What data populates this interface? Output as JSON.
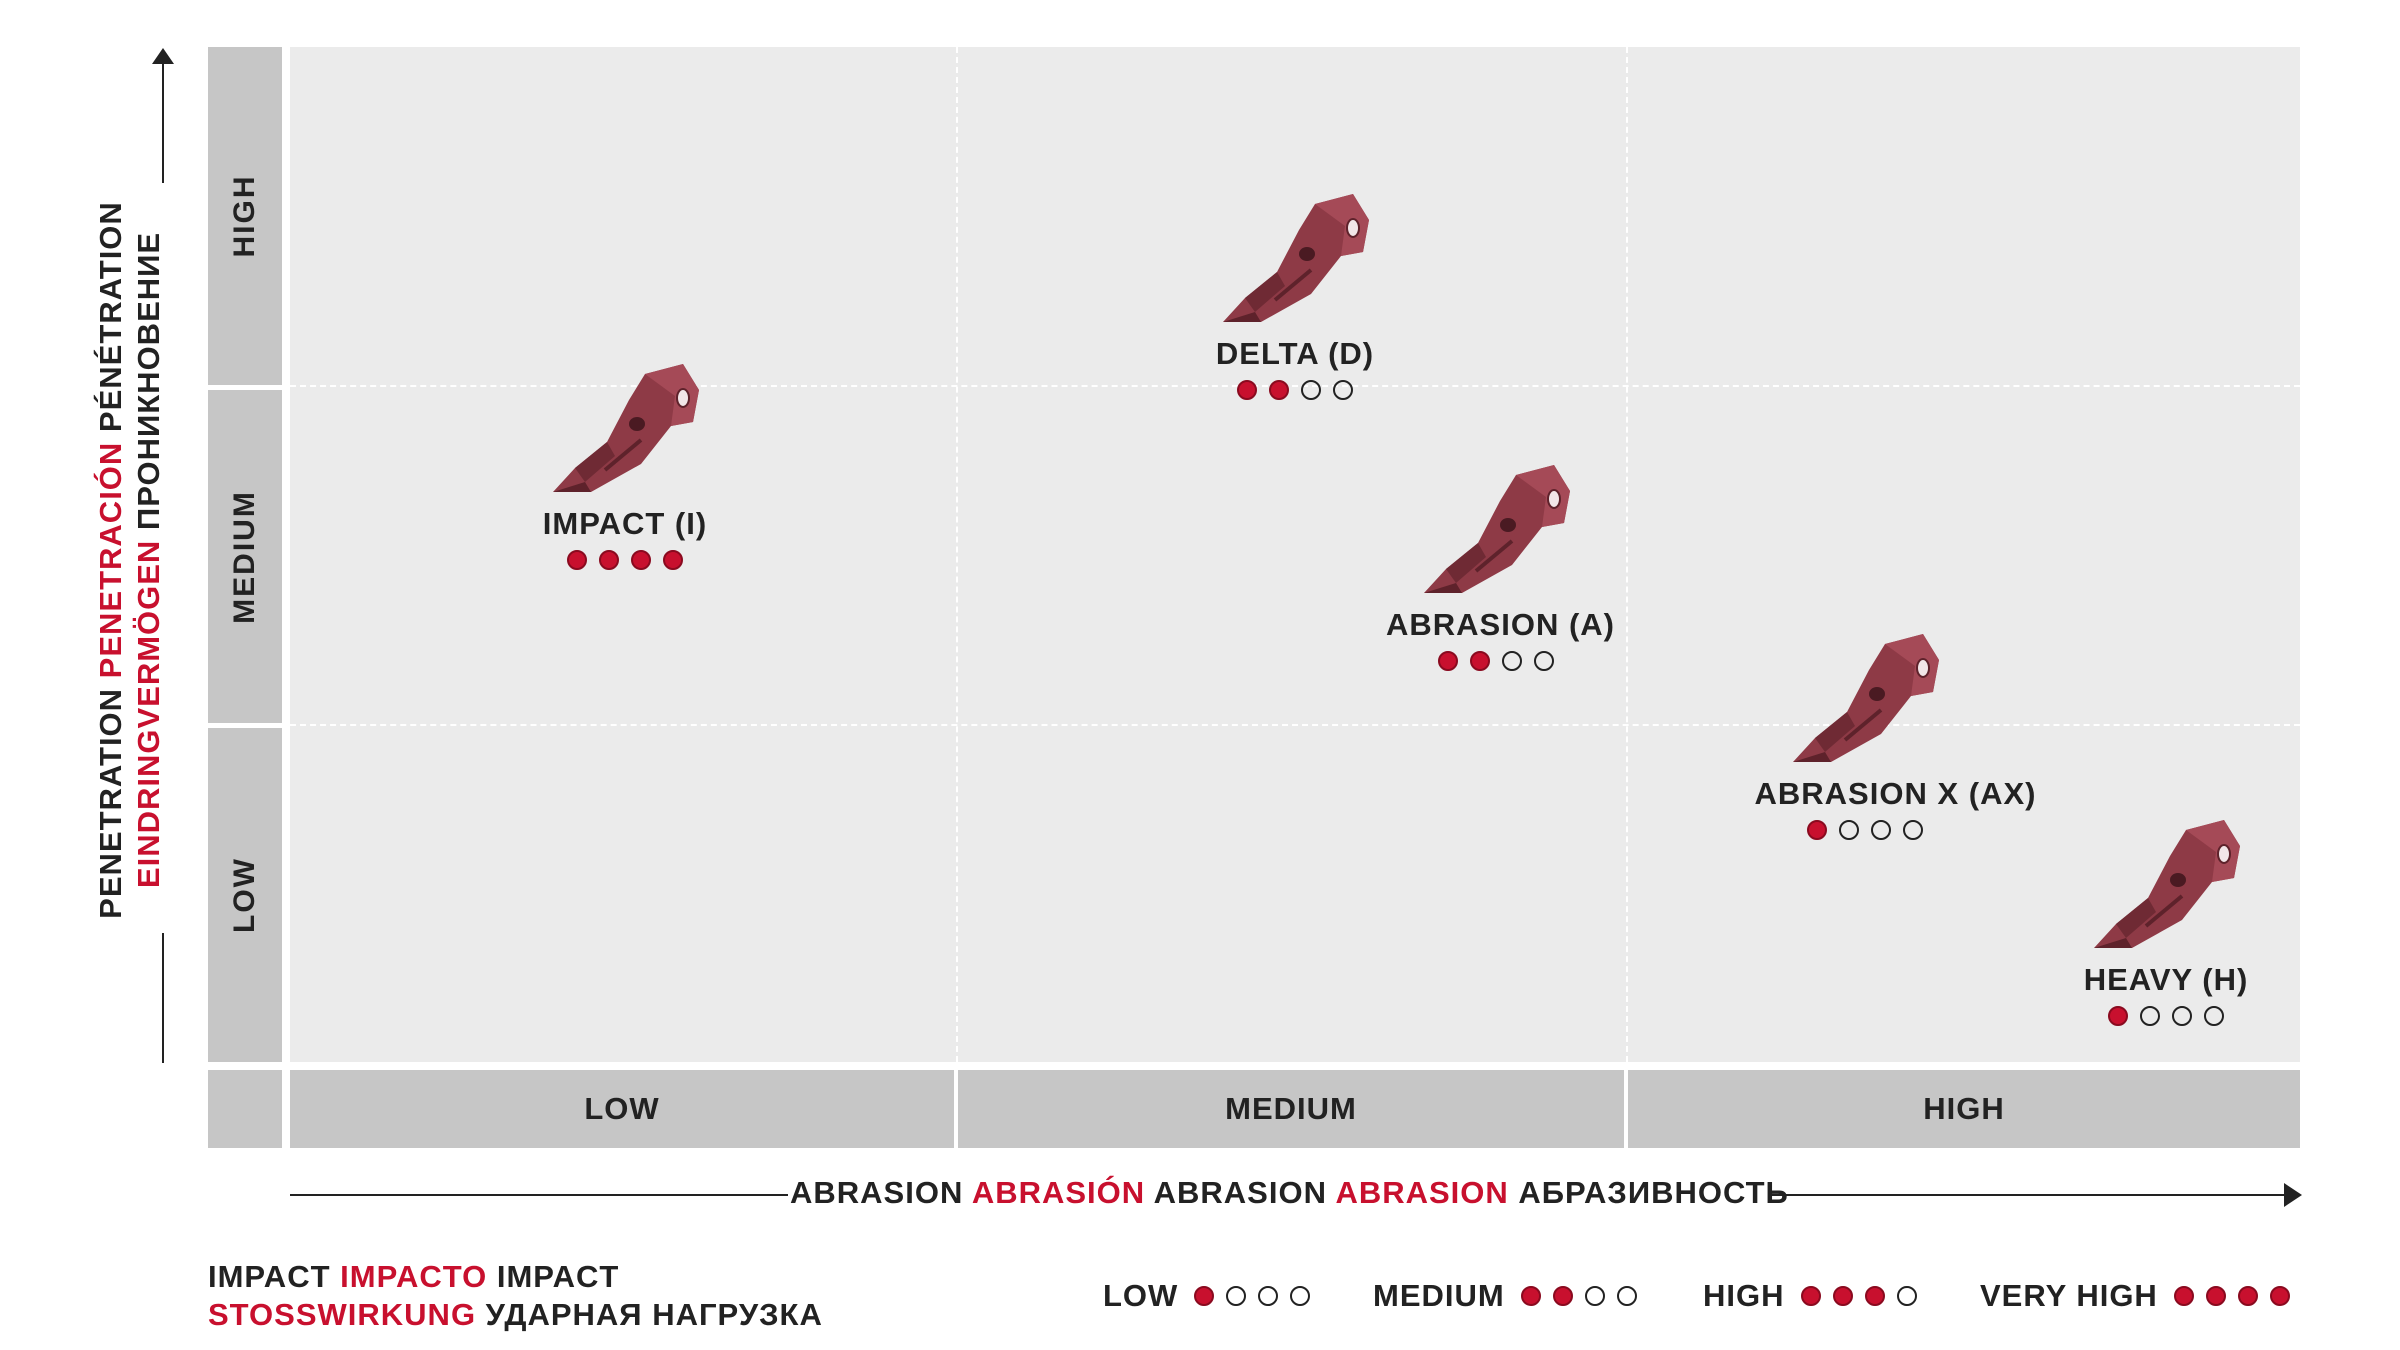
{
  "y_axis": {
    "title_parts": [
      {
        "text": "PENETRATION ",
        "accent": false
      },
      {
        "text": "PENETRACIÓN ",
        "accent": true
      },
      {
        "text": "PÉNÉTRATION",
        "accent": false
      }
    ],
    "title_parts_line2": [
      {
        "text": "EINDRINGVERMÖGEN ",
        "accent": true
      },
      {
        "text": "ПРОНИКНОВЕНИЕ",
        "accent": false
      }
    ],
    "levels": [
      "HIGH",
      "MEDIUM",
      "LOW"
    ]
  },
  "x_axis": {
    "levels": [
      "LOW",
      "MEDIUM",
      "HIGH"
    ],
    "title_parts": [
      {
        "text": "ABRASION ",
        "accent": false
      },
      {
        "text": "ABRASIÓN ",
        "accent": true
      },
      {
        "text": "ABRASION ",
        "accent": false
      },
      {
        "text": "ABRASION ",
        "accent": true
      },
      {
        "text": "АБРАЗИВНОСТЬ",
        "accent": false
      }
    ]
  },
  "teeth": [
    {
      "name": "IMPACT (I)",
      "abrasion": 0.5,
      "penetration": 1.5,
      "impact": 4
    },
    {
      "name": "DELTA (D)",
      "abrasion": 1.5,
      "penetration": 2.0,
      "impact": 2
    },
    {
      "name": "ABRASION (A)",
      "abrasion": 1.8,
      "penetration": 1.2,
      "impact": 2
    },
    {
      "name": "ABRASION X (AX)",
      "abrasion": 2.35,
      "penetration": 0.7,
      "impact": 1
    },
    {
      "name": "HEAVY (H)",
      "abrasion": 2.8,
      "penetration": 0.15,
      "impact": 1
    }
  ],
  "impact_legend": {
    "line1": [
      {
        "text": "IMPACT ",
        "accent": false
      },
      {
        "text": "IMPACTO ",
        "accent": true
      },
      {
        "text": "IMPACT",
        "accent": false
      }
    ],
    "line2": [
      {
        "text": "STOSSWIRKUNG ",
        "accent": true
      },
      {
        "text": "УДАРНАЯ НАГРУЗКА",
        "accent": false
      }
    ],
    "items": [
      {
        "label": "LOW",
        "filled": 1
      },
      {
        "label": "MEDIUM",
        "filled": 2
      },
      {
        "label": "HIGH",
        "filled": 3
      },
      {
        "label": "VERY HIGH",
        "filled": 4
      }
    ]
  },
  "colors": {
    "accent": "#c8102e",
    "tooth": "#8e3a46",
    "panel": "#ebebeb",
    "band": "#c6c6c6"
  }
}
